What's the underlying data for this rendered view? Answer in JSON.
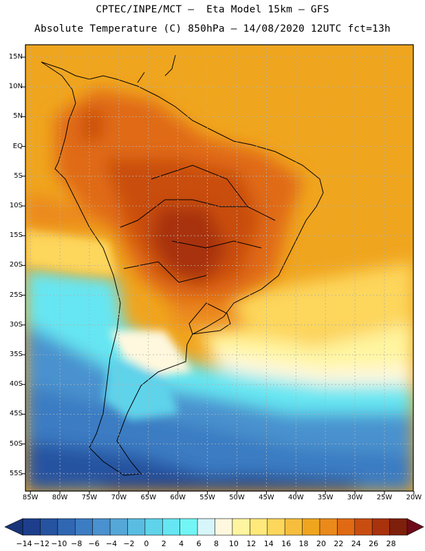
{
  "title_line1": "CPTEC/INPE/MCT –  Eta Model 15km – GFS",
  "title_line2": "Absolute Temperature (C) 850hPa – 14/08/2020 12UTC fct=13h",
  "lat_labels": [
    "15N",
    "10N",
    "5N",
    "EQ",
    "5S",
    "10S",
    "15S",
    "20S",
    "25S",
    "30S",
    "35S",
    "40S",
    "45S",
    "50S",
    "55S"
  ],
  "lon_labels": [
    "85W",
    "80W",
    "75W",
    "70W",
    "65W",
    "60W",
    "55W",
    "50W",
    "45W",
    "40W",
    "35W",
    "30W",
    "25W",
    "20W"
  ],
  "colorbar": {
    "labels": [
      "-14",
      "-12",
      "-10",
      "-8",
      "-6",
      "-4",
      "-2",
      "0",
      "2",
      "4",
      "6",
      "8",
      "10",
      "12",
      "14",
      "16",
      "18",
      "20",
      "22",
      "24",
      "26",
      "28"
    ],
    "colors": [
      "#1d3e8a",
      "#2653a0",
      "#2f67b2",
      "#3b7cc2",
      "#4a92cf",
      "#55a7d8",
      "#58bde0",
      "#5fd3ea",
      "#66e6f2",
      "#74f5f5",
      "#d6f6fa",
      "#fff8de",
      "#fff5a0",
      "#ffe97a",
      "#fdd65c",
      "#f6be3c",
      "#f0a51e",
      "#eb891a",
      "#e06a14",
      "#c94d10",
      "#a7320c",
      "#7d1f0a"
    ],
    "under_color": "#19357a",
    "over_color": "#6e0b1a"
  }
}
